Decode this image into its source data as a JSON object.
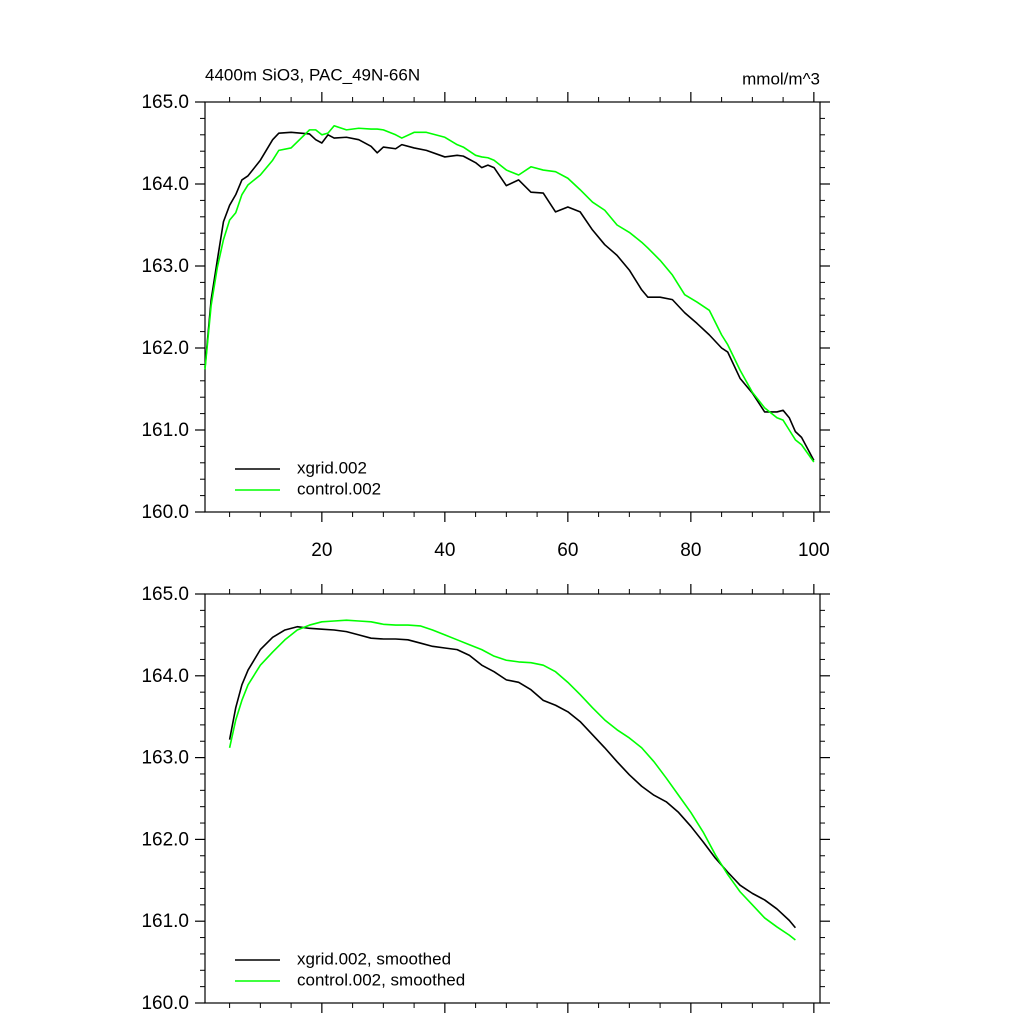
{
  "chart_data": [
    {
      "type": "line",
      "title": "4400m SiO3, PAC_49N-66N",
      "units": "mmol/m^3",
      "x": [
        1,
        2,
        3,
        4,
        5,
        6,
        7,
        8,
        10,
        12,
        13,
        15,
        18,
        19,
        20,
        21,
        22,
        24,
        26,
        28,
        29,
        30,
        32,
        33,
        35,
        37,
        40,
        42,
        43,
        45,
        46,
        47,
        48,
        50,
        52,
        54,
        56,
        58,
        60,
        62,
        64,
        66,
        68,
        70,
        72,
        73,
        75,
        77,
        79,
        81,
        83,
        85,
        86,
        88,
        90,
        92,
        94,
        95,
        96,
        97,
        98,
        100
      ],
      "series": [
        {
          "name": "xgrid.002",
          "color": "#000000",
          "values": [
            161.76,
            162.59,
            163.07,
            163.54,
            163.74,
            163.87,
            164.05,
            164.1,
            164.29,
            164.54,
            164.62,
            164.63,
            164.61,
            164.54,
            164.5,
            164.6,
            164.56,
            164.57,
            164.54,
            164.46,
            164.38,
            164.45,
            164.43,
            164.48,
            164.44,
            164.41,
            164.33,
            164.35,
            164.34,
            164.26,
            164.2,
            164.23,
            164.2,
            163.98,
            164.05,
            163.9,
            163.89,
            163.66,
            163.72,
            163.66,
            163.44,
            163.26,
            163.13,
            162.95,
            162.71,
            162.62,
            162.62,
            162.59,
            162.43,
            162.3,
            162.16,
            162.0,
            161.95,
            161.63,
            161.45,
            161.22,
            161.22,
            161.24,
            161.15,
            160.98,
            160.91,
            160.63
          ]
        },
        {
          "name": "control.002",
          "color": "#00ff00",
          "values": [
            161.74,
            162.52,
            162.98,
            163.32,
            163.56,
            163.65,
            163.87,
            163.99,
            164.11,
            164.29,
            164.41,
            164.44,
            164.66,
            164.66,
            164.6,
            164.62,
            164.71,
            164.66,
            164.68,
            164.67,
            164.67,
            164.66,
            164.6,
            164.56,
            164.63,
            164.63,
            164.57,
            164.48,
            164.45,
            164.35,
            164.33,
            164.32,
            164.29,
            164.17,
            164.11,
            164.21,
            164.17,
            164.15,
            164.07,
            163.93,
            163.78,
            163.68,
            163.5,
            163.41,
            163.29,
            163.22,
            163.07,
            162.89,
            162.65,
            162.56,
            162.46,
            162.16,
            162.04,
            161.73,
            161.46,
            161.27,
            161.15,
            161.12,
            161.0,
            160.88,
            160.82,
            160.61
          ]
        }
      ],
      "xlim": [
        1,
        101
      ],
      "xticks": [
        20,
        40,
        60,
        80,
        100
      ],
      "ylim": [
        160,
        165
      ],
      "yticks": [
        {
          "value": 160,
          "label": "160.0"
        },
        {
          "value": 161,
          "label": "161.0"
        },
        {
          "value": 162,
          "label": "162.0"
        },
        {
          "value": 163,
          "label": "163.0"
        },
        {
          "value": 164,
          "label": "164.0"
        },
        {
          "value": 165,
          "label": "165.0"
        }
      ],
      "legend": "lower left"
    },
    {
      "type": "line",
      "x": [
        5,
        6,
        7,
        8,
        10,
        12,
        14,
        16,
        18,
        20,
        22,
        24,
        26,
        28,
        30,
        32,
        34,
        36,
        38,
        40,
        42,
        44,
        46,
        48,
        50,
        52,
        54,
        56,
        58,
        60,
        62,
        64,
        66,
        68,
        70,
        72,
        74,
        76,
        78,
        80,
        82,
        84,
        86,
        88,
        90,
        92,
        94,
        96,
        97
      ],
      "series": [
        {
          "name": "xgrid.002, smoothed",
          "color": "#000000",
          "values": [
            163.22,
            163.61,
            163.89,
            164.07,
            164.32,
            164.47,
            164.56,
            164.6,
            164.58,
            164.57,
            164.56,
            164.54,
            164.5,
            164.46,
            164.45,
            164.45,
            164.44,
            164.4,
            164.36,
            164.34,
            164.32,
            164.25,
            164.13,
            164.05,
            163.95,
            163.92,
            163.83,
            163.7,
            163.64,
            163.56,
            163.44,
            163.28,
            163.12,
            162.95,
            162.79,
            162.65,
            162.54,
            162.46,
            162.33,
            162.16,
            161.97,
            161.77,
            161.6,
            161.44,
            161.34,
            161.26,
            161.15,
            161.01,
            160.92
          ]
        },
        {
          "name": "control.002, smoothed",
          "color": "#00ff00",
          "values": [
            163.12,
            163.46,
            163.7,
            163.89,
            164.13,
            164.29,
            164.44,
            164.56,
            164.62,
            164.66,
            164.67,
            164.68,
            164.67,
            164.66,
            164.63,
            164.62,
            164.62,
            164.61,
            164.56,
            164.5,
            164.44,
            164.38,
            164.32,
            164.24,
            164.19,
            164.17,
            164.16,
            164.13,
            164.05,
            163.92,
            163.77,
            163.61,
            163.46,
            163.34,
            163.24,
            163.12,
            162.95,
            162.75,
            162.54,
            162.33,
            162.09,
            161.81,
            161.57,
            161.36,
            161.2,
            161.04,
            160.93,
            160.83,
            160.77
          ]
        }
      ],
      "xlim": [
        1,
        101
      ],
      "xticks": [
        20,
        40,
        60,
        80,
        100
      ],
      "ylim": [
        160,
        165
      ],
      "yticks": [
        {
          "value": 160,
          "label": "160.0"
        },
        {
          "value": 161,
          "label": "161.0"
        },
        {
          "value": 162,
          "label": "162.0"
        },
        {
          "value": 163,
          "label": "163.0"
        },
        {
          "value": 164,
          "label": "164.0"
        },
        {
          "value": 165,
          "label": "165.0"
        }
      ],
      "legend": "lower left"
    }
  ]
}
